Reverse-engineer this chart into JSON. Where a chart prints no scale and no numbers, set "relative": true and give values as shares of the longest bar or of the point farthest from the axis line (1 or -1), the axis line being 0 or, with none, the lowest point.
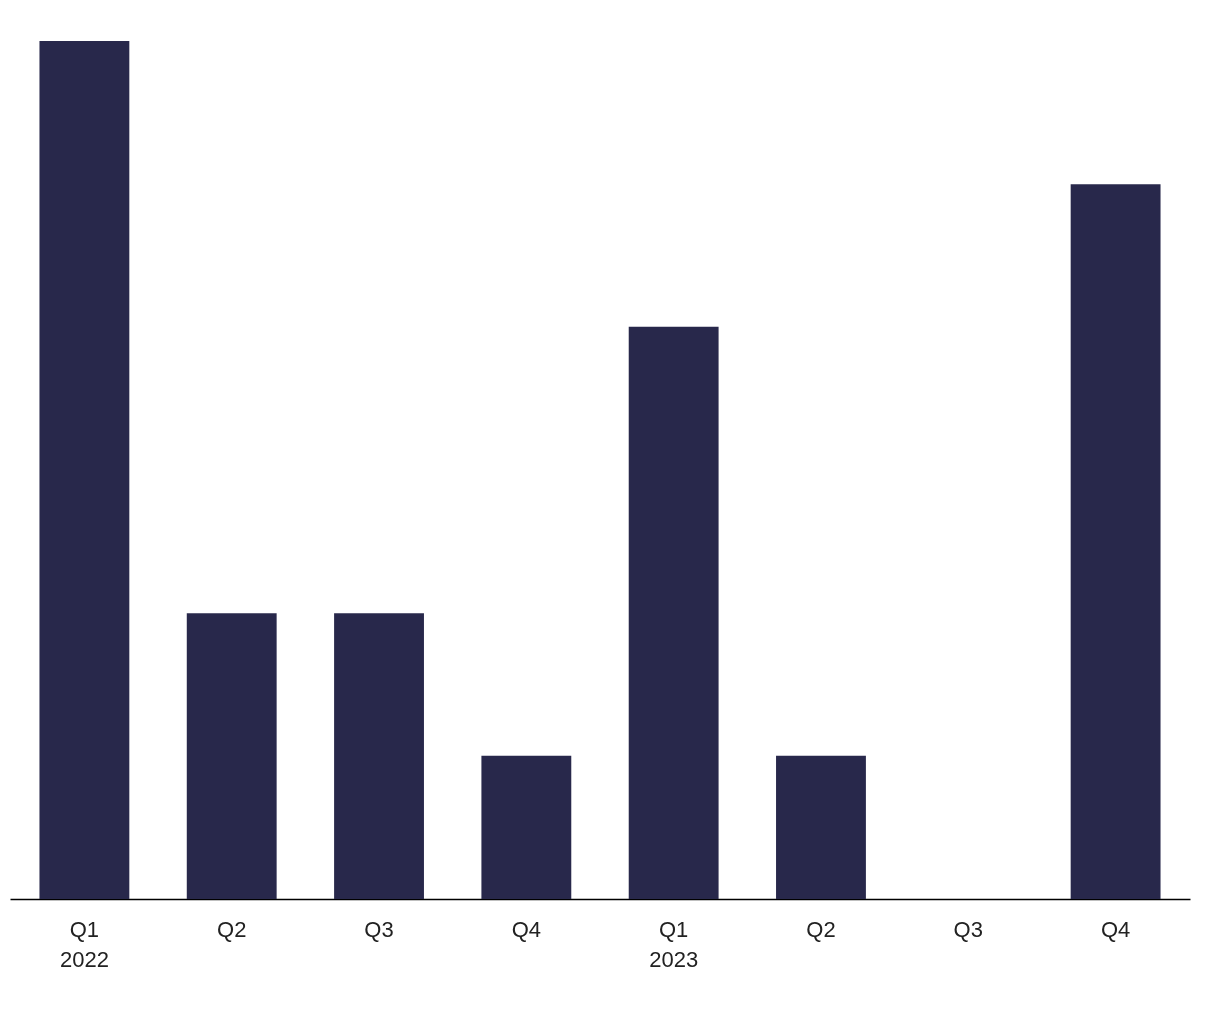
{
  "chart_data": {
    "type": "bar",
    "relative": true,
    "categories": [
      "Q1\n2022",
      "Q2",
      "Q3",
      "Q4",
      "Q1\n2023",
      "Q2",
      "Q3",
      "Q4"
    ],
    "values": [
      1,
      0.333,
      0.333,
      0.167,
      0.667,
      0.167,
      0,
      0.833
    ],
    "color": "#28284b",
    "grid": false
  }
}
